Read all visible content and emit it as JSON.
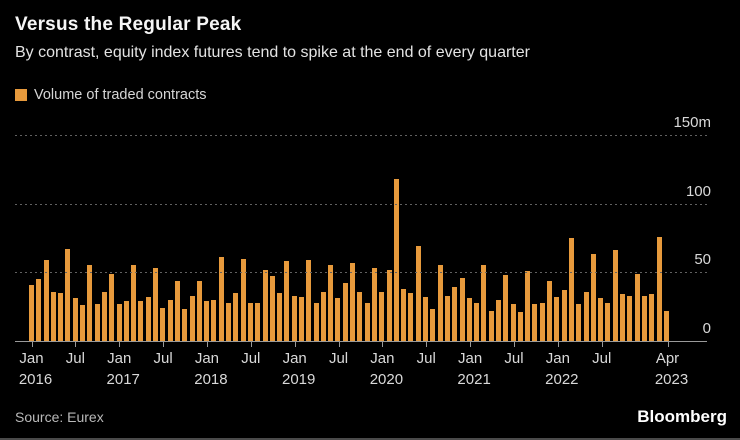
{
  "header": {
    "title": "Versus the Regular Peak",
    "subtitle": "By contrast, equity index futures tend to spike at the end of every quarter"
  },
  "legend": {
    "label": "Volume of traded contracts",
    "swatch_color": "#E79A3C"
  },
  "chart_data": {
    "type": "bar",
    "title": "Versus the Regular Peak",
    "series_name": "Volume of traded contracts",
    "unit": "millions of contracts",
    "ylim": [
      0,
      150
    ],
    "grid": "horizontal-dashed",
    "legend_position": "top-left",
    "y_axis_side": "right",
    "bar_color": "#E79A3C",
    "months": [
      "Jan 2016",
      "Feb 2016",
      "Mar 2016",
      "Apr 2016",
      "May 2016",
      "Jun 2016",
      "Jul 2016",
      "Aug 2016",
      "Sep 2016",
      "Oct 2016",
      "Nov 2016",
      "Dec 2016",
      "Jan 2017",
      "Feb 2017",
      "Mar 2017",
      "Apr 2017",
      "May 2017",
      "Jun 2017",
      "Jul 2017",
      "Aug 2017",
      "Sep 2017",
      "Oct 2017",
      "Nov 2017",
      "Dec 2017",
      "Jan 2018",
      "Feb 2018",
      "Mar 2018",
      "Apr 2018",
      "May 2018",
      "Jun 2018",
      "Jul 2018",
      "Aug 2018",
      "Sep 2018",
      "Oct 2018",
      "Nov 2018",
      "Dec 2018",
      "Jan 2019",
      "Feb 2019",
      "Mar 2019",
      "Apr 2019",
      "May 2019",
      "Jun 2019",
      "Jul 2019",
      "Aug 2019",
      "Sep 2019",
      "Oct 2019",
      "Nov 2019",
      "Dec 2019",
      "Jan 2020",
      "Feb 2020",
      "Mar 2020",
      "Apr 2020",
      "May 2020",
      "Jun 2020",
      "Jul 2020",
      "Aug 2020",
      "Sep 2020",
      "Oct 2020",
      "Nov 2020",
      "Dec 2020",
      "Jan 2021",
      "Feb 2021",
      "Mar 2021",
      "Apr 2021",
      "May 2021",
      "Jun 2021",
      "Jul 2021",
      "Aug 2021",
      "Sep 2021",
      "Oct 2021",
      "Nov 2021",
      "Dec 2021",
      "Jan 2022",
      "Feb 2022",
      "Mar 2022",
      "Apr 2022",
      "May 2022",
      "Jun 2022",
      "Jul 2022",
      "Aug 2022",
      "Sep 2022",
      "Oct 2022",
      "Nov 2022",
      "Dec 2022",
      "Jan 2023",
      "Feb 2023",
      "Mar 2023",
      "Apr 2023"
    ],
    "values": [
      41,
      45,
      59,
      36,
      35,
      67,
      31,
      26,
      55,
      27,
      36,
      49,
      27,
      29,
      55,
      29,
      32,
      53,
      24,
      30,
      44,
      23,
      33,
      44,
      29,
      30,
      61,
      28,
      35,
      60,
      28,
      28,
      52,
      47,
      35,
      58,
      33,
      32,
      59,
      28,
      36,
      55,
      31,
      42,
      57,
      36,
      28,
      53,
      36,
      52,
      118,
      38,
      35,
      69,
      32,
      23,
      55,
      33,
      39,
      46,
      31,
      28,
      55,
      22,
      30,
      48,
      27,
      21,
      51,
      27,
      28,
      44,
      32,
      37,
      75,
      27,
      36,
      63,
      31,
      28,
      66,
      34,
      33,
      49,
      33,
      34,
      76,
      22
    ],
    "y_ticks": [
      {
        "label": "150m",
        "value": 150
      },
      {
        "label": "100",
        "value": 100
      },
      {
        "label": "50",
        "value": 50
      },
      {
        "label": "0",
        "value": 0
      }
    ],
    "x_ticks": [
      {
        "month_index": 0,
        "line1": "Jan",
        "line2": "2016"
      },
      {
        "month_index": 6,
        "line1": "Jul",
        "line2": ""
      },
      {
        "month_index": 12,
        "line1": "Jan",
        "line2": "2017"
      },
      {
        "month_index": 18,
        "line1": "Jul",
        "line2": ""
      },
      {
        "month_index": 24,
        "line1": "Jan",
        "line2": "2018"
      },
      {
        "month_index": 30,
        "line1": "Jul",
        "line2": ""
      },
      {
        "month_index": 36,
        "line1": "Jan",
        "line2": "2019"
      },
      {
        "month_index": 42,
        "line1": "Jul",
        "line2": ""
      },
      {
        "month_index": 48,
        "line1": "Jan",
        "line2": "2020"
      },
      {
        "month_index": 54,
        "line1": "Jul",
        "line2": ""
      },
      {
        "month_index": 60,
        "line1": "Jan",
        "line2": "2021"
      },
      {
        "month_index": 66,
        "line1": "Jul",
        "line2": ""
      },
      {
        "month_index": 72,
        "line1": "Jan",
        "line2": "2022"
      },
      {
        "month_index": 78,
        "line1": "Jul",
        "line2": ""
      },
      {
        "month_index": 87,
        "line1": "Apr",
        "line2": "2023"
      }
    ]
  },
  "footer": {
    "source": "Source: Eurex",
    "brand": "Bloomberg"
  }
}
